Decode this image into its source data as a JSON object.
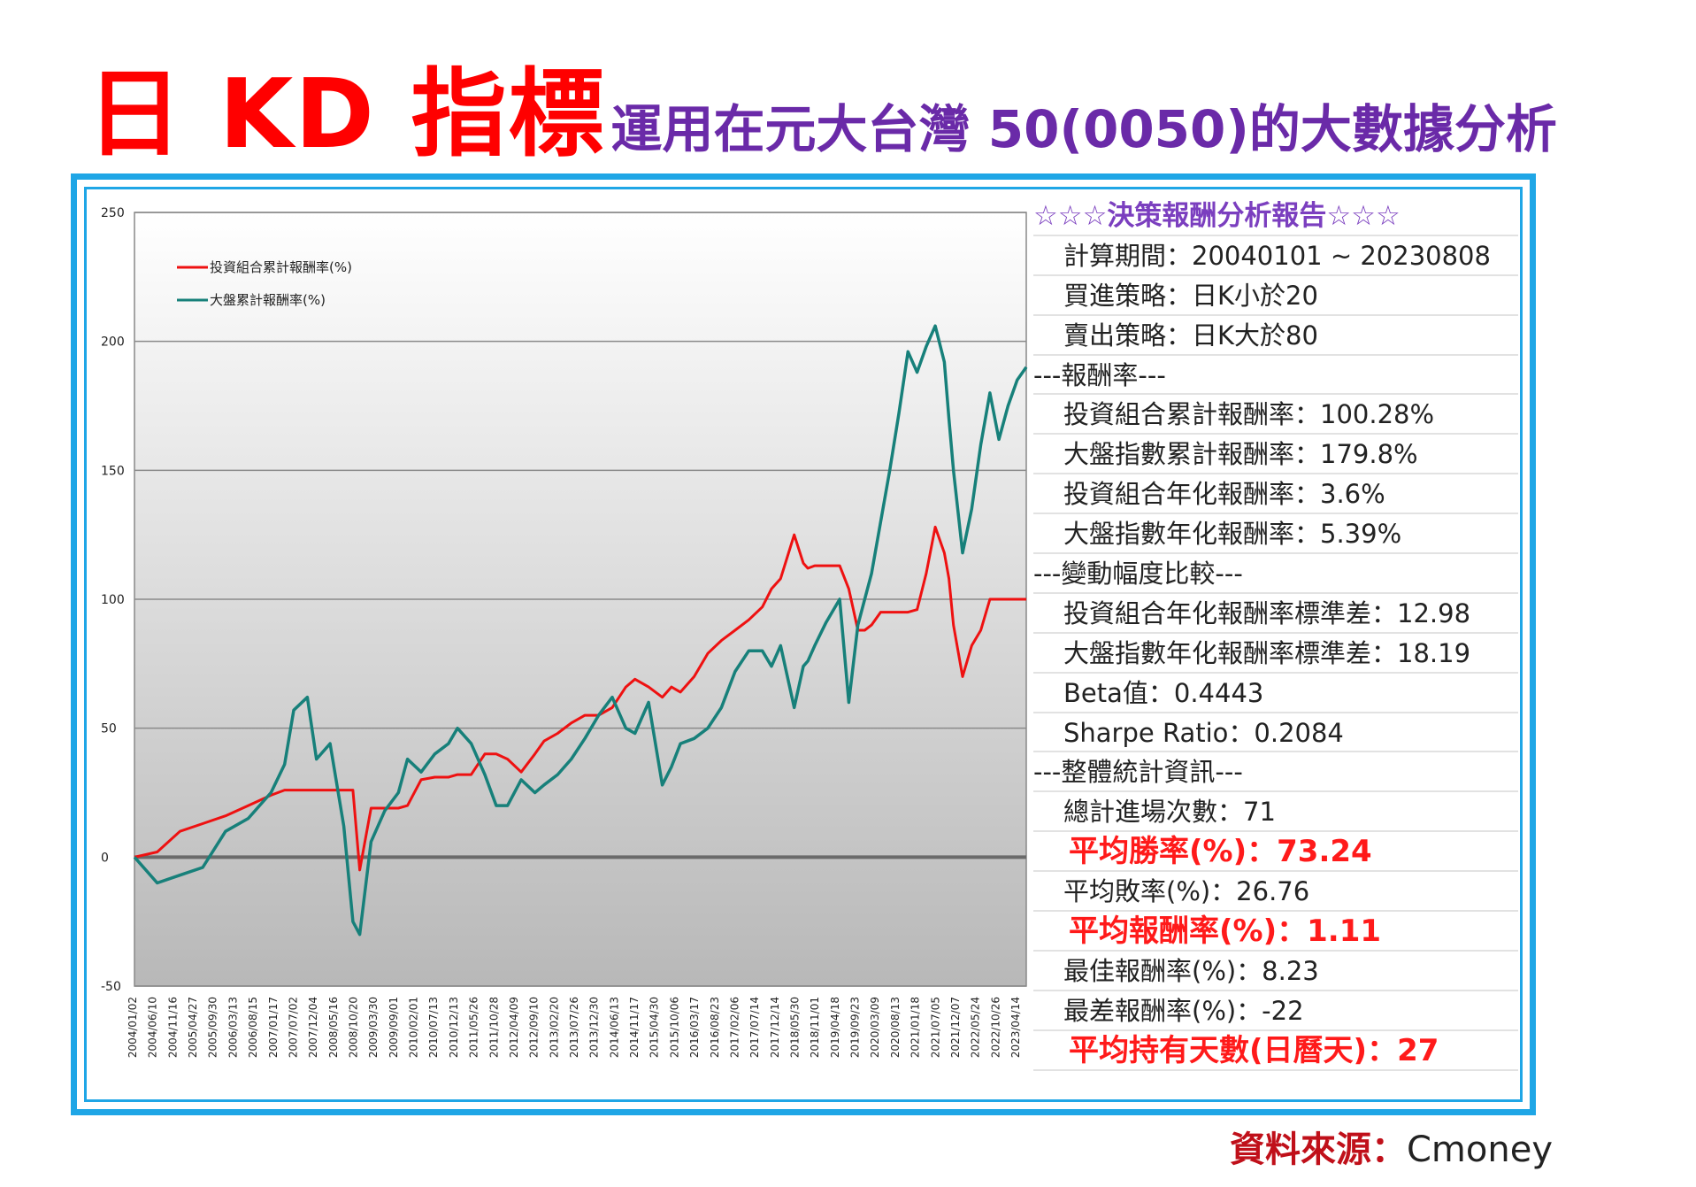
{
  "title": {
    "main": "日 KD 指標",
    "sub": "運用在元大台灣 50(0050)的大數據分析"
  },
  "source": {
    "label": "資料來源：",
    "value": "Cmoney"
  },
  "report": {
    "header": "☆☆☆決策報酬分析報告☆☆☆",
    "rows": [
      {
        "text": "計算期間：20040101 ~ 20230808",
        "style": "indent"
      },
      {
        "text": "買進策略：日K小於20",
        "style": "indent"
      },
      {
        "text": "賣出策略：日K大於80",
        "style": "indent"
      },
      {
        "text": "---報酬率---",
        "style": "sep"
      },
      {
        "text": "投資組合累計報酬率：100.28%",
        "style": "indent"
      },
      {
        "text": "大盤指數累計報酬率：179.8%",
        "style": "indent"
      },
      {
        "text": "投資組合年化報酬率：3.6%",
        "style": "indent"
      },
      {
        "text": "大盤指數年化報酬率：5.39%",
        "style": "indent"
      },
      {
        "text": "---變動幅度比較---",
        "style": "sep"
      },
      {
        "text": "投資組合年化報酬率標準差：12.98",
        "style": "indent"
      },
      {
        "text": "大盤指數年化報酬率標準差：18.19",
        "style": "indent"
      },
      {
        "text": "Beta值：0.4443",
        "style": "indent"
      },
      {
        "text": "Sharpe Ratio：0.2084",
        "style": "indent"
      },
      {
        "text": "---整體統計資訊---",
        "style": "sep"
      },
      {
        "text": "總計進場次數：71",
        "style": "indent"
      },
      {
        "text": "平均勝率(%)：73.24",
        "style": "hl"
      },
      {
        "text": "平均敗率(%)：26.76",
        "style": "indent"
      },
      {
        "text": "平均報酬率(%)：1.11",
        "style": "hl"
      },
      {
        "text": "最佳報酬率(%)：8.23",
        "style": "indent"
      },
      {
        "text": "最差報酬率(%)：-22",
        "style": "indent"
      },
      {
        "text": "平均持有天數(日曆天)：27",
        "style": "hl"
      }
    ]
  },
  "chart_data": {
    "type": "line",
    "title": "",
    "xlabel": "",
    "ylabel": "",
    "ylim": [
      -50,
      250
    ],
    "yticks": [
      250,
      200,
      150,
      100,
      50,
      0,
      -50
    ],
    "grid": true,
    "legend_position": "top-left",
    "colors": {
      "portfolio": "#ee1111",
      "index": "#17807a"
    },
    "xticks": [
      "2004/01/02",
      "2004/06/10",
      "2004/11/16",
      "2005/04/27",
      "2005/09/30",
      "2006/03/13",
      "2006/08/15",
      "2007/01/17",
      "2007/07/02",
      "2007/12/04",
      "2008/05/16",
      "2008/10/20",
      "2009/03/30",
      "2009/09/01",
      "2010/02/01",
      "2010/07/13",
      "2010/12/13",
      "2011/05/26",
      "2011/10/28",
      "2012/04/09",
      "2012/09/10",
      "2013/02/20",
      "2013/07/26",
      "2013/12/30",
      "2014/06/13",
      "2014/11/17",
      "2015/04/30",
      "2015/10/06",
      "2016/03/17",
      "2016/08/23",
      "2017/02/06",
      "2017/07/14",
      "2017/12/14",
      "2018/05/30",
      "2018/11/01",
      "2019/04/18",
      "2019/09/23",
      "2020/03/09",
      "2020/08/13",
      "2021/01/18",
      "2021/07/05",
      "2021/12/07",
      "2022/05/24",
      "2022/10/26",
      "2023/04/14"
    ],
    "x": [
      2004.0,
      2004.5,
      2005.0,
      2005.5,
      2006.0,
      2006.5,
      2007.0,
      2007.3,
      2007.5,
      2007.8,
      2008.0,
      2008.3,
      2008.6,
      2008.8,
      2008.95,
      2009.2,
      2009.5,
      2009.8,
      2010.0,
      2010.3,
      2010.6,
      2010.9,
      2011.1,
      2011.4,
      2011.7,
      2011.95,
      2012.2,
      2012.5,
      2012.8,
      2013.0,
      2013.3,
      2013.6,
      2013.9,
      2014.2,
      2014.5,
      2014.8,
      2015.0,
      2015.3,
      2015.6,
      2015.8,
      2016.0,
      2016.3,
      2016.6,
      2016.9,
      2017.2,
      2017.5,
      2017.8,
      2018.0,
      2018.2,
      2018.5,
      2018.7,
      2018.8,
      2018.95,
      2019.2,
      2019.5,
      2019.7,
      2019.9,
      2020.05,
      2020.2,
      2020.4,
      2020.6,
      2020.8,
      2021.0,
      2021.2,
      2021.4,
      2021.6,
      2021.8,
      2021.9,
      2022.0,
      2022.2,
      2022.4,
      2022.6,
      2022.8,
      2023.0,
      2023.2,
      2023.4,
      2023.6
    ],
    "series": [
      {
        "name": "投資組合累計報酬率(%)",
        "values": [
          0,
          2,
          10,
          13,
          16,
          20,
          24,
          26,
          26,
          26,
          26,
          26,
          26,
          26,
          -5,
          19,
          19,
          19,
          20,
          30,
          31,
          31,
          32,
          32,
          40,
          40,
          38,
          33,
          40,
          45,
          48,
          52,
          55,
          55,
          58,
          66,
          69,
          66,
          62,
          66,
          64,
          70,
          79,
          84,
          88,
          92,
          97,
          104,
          108,
          125,
          114,
          112,
          113,
          113,
          113,
          104,
          88,
          88,
          90,
          95,
          95,
          95,
          95,
          96,
          110,
          128,
          118,
          108,
          90,
          70,
          82,
          88,
          100,
          100,
          100,
          100,
          100
        ]
      },
      {
        "name": "大盤累計報酬率(%)",
        "values": [
          0,
          -10,
          -7,
          -4,
          10,
          15,
          25,
          36,
          57,
          62,
          38,
          44,
          12,
          -25,
          -30,
          6,
          18,
          25,
          38,
          33,
          40,
          44,
          50,
          44,
          32,
          20,
          20,
          30,
          25,
          28,
          32,
          38,
          46,
          55,
          62,
          50,
          48,
          60,
          28,
          35,
          44,
          46,
          50,
          58,
          72,
          80,
          80,
          74,
          82,
          58,
          74,
          76,
          82,
          91,
          100,
          60,
          90,
          100,
          110,
          130,
          150,
          172,
          196,
          188,
          198,
          206,
          192,
          170,
          150,
          118,
          135,
          160,
          180,
          162,
          175,
          185,
          190
        ]
      }
    ]
  }
}
